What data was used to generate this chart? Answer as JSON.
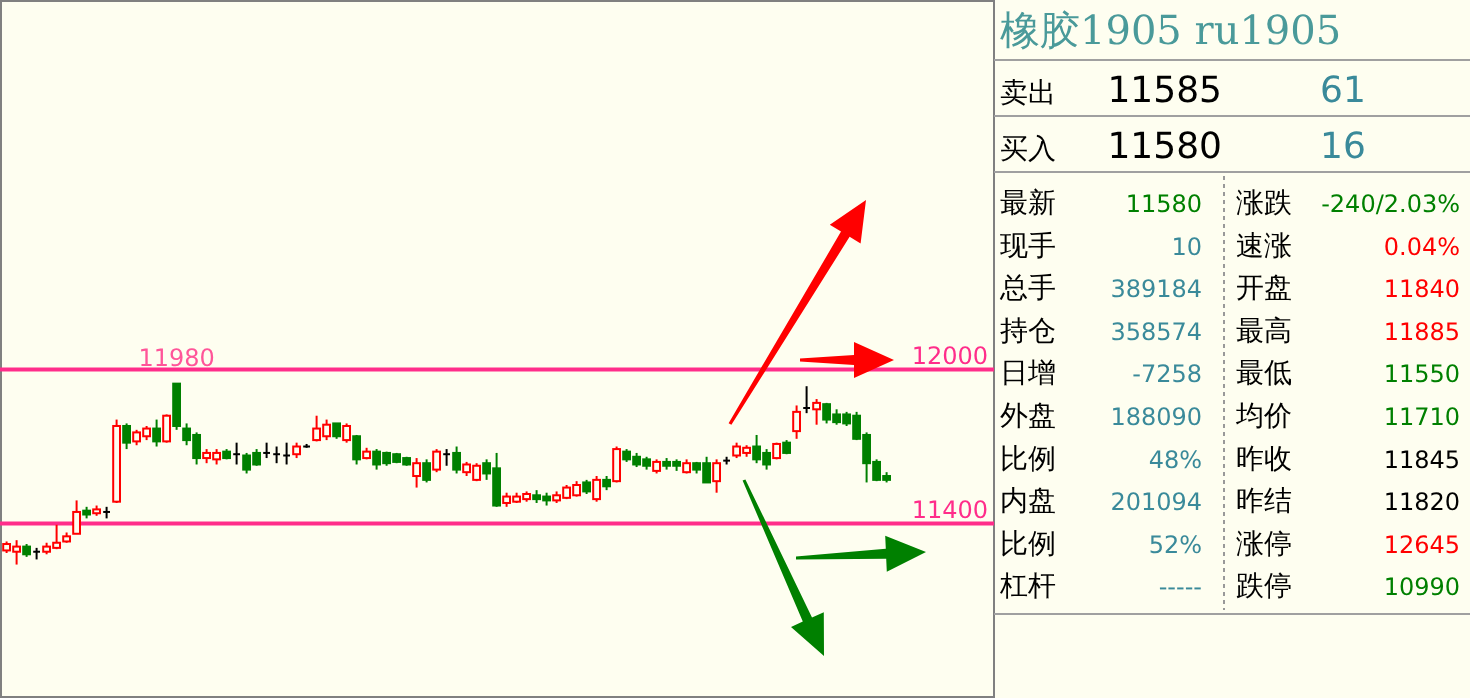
{
  "chart_data": [
    {
      "type": "candlestick",
      "categories": [
        null,
        null,
        null,
        null,
        null,
        null,
        null,
        null,
        null,
        null,
        null,
        null,
        null,
        null,
        null,
        null,
        null,
        null,
        null,
        null,
        null,
        null,
        null,
        null,
        null,
        null,
        null,
        null,
        null,
        null,
        null,
        null,
        null,
        null,
        null,
        null,
        null,
        null,
        null,
        null,
        null,
        null,
        null,
        null,
        null,
        null,
        null,
        null,
        null,
        null,
        null,
        null,
        null,
        null,
        null,
        null,
        null,
        null,
        null,
        null,
        null,
        null,
        null,
        null,
        null,
        null,
        null,
        null,
        null,
        null,
        null,
        null,
        null,
        null,
        null,
        null,
        null,
        null,
        null,
        null,
        null,
        null,
        null,
        null,
        null,
        null,
        null,
        null,
        null
      ],
      "ohlc": [
        [
          11295,
          11330,
          11285,
          11320
        ],
        [
          11290,
          11335,
          11240,
          11310
        ],
        [
          11310,
          11320,
          11270,
          11280
        ],
        [
          11290,
          11305,
          11260,
          11290
        ],
        [
          11290,
          11325,
          11280,
          11310
        ],
        [
          11305,
          11395,
          11300,
          11325
        ],
        [
          11330,
          11365,
          11325,
          11350
        ],
        [
          11360,
          11490,
          11360,
          11445
        ],
        [
          11450,
          11465,
          11420,
          11435
        ],
        [
          11440,
          11470,
          11430,
          11455
        ],
        [
          11445,
          11465,
          11420,
          11445
        ],
        [
          11485,
          11805,
          11480,
          11780
        ],
        [
          11780,
          11790,
          11690,
          11715
        ],
        [
          11720,
          11765,
          11705,
          11755
        ],
        [
          11740,
          11780,
          11725,
          11770
        ],
        [
          11770,
          11805,
          11700,
          11720
        ],
        [
          11720,
          11825,
          11715,
          11820
        ],
        [
          11945,
          11945,
          11765,
          11780
        ],
        [
          11770,
          11790,
          11705,
          11725
        ],
        [
          11745,
          11755,
          11630,
          11655
        ],
        [
          11655,
          11690,
          11635,
          11675
        ],
        [
          11650,
          11690,
          11630,
          11675
        ],
        [
          11680,
          11690,
          11650,
          11655
        ],
        [
          11670,
          11715,
          11630,
          11670
        ],
        [
          11665,
          11675,
          11595,
          11610
        ],
        [
          11675,
          11690,
          11625,
          11630
        ],
        [
          11675,
          11715,
          11655,
          11675
        ],
        [
          11670,
          11700,
          11635,
          11670
        ],
        [
          11665,
          11715,
          11630,
          11665
        ],
        [
          11670,
          11715,
          11655,
          11700
        ],
        [
          11700,
          11710,
          11695,
          11700
        ],
        [
          11725,
          11820,
          11720,
          11770
        ],
        [
          11740,
          11805,
          11725,
          11785
        ],
        [
          11790,
          11790,
          11730,
          11740
        ],
        [
          11725,
          11790,
          11715,
          11780
        ],
        [
          11740,
          11745,
          11630,
          11650
        ],
        [
          11655,
          11695,
          11650,
          11680
        ],
        [
          11680,
          11690,
          11610,
          11630
        ],
        [
          11675,
          11680,
          11625,
          11635
        ],
        [
          11670,
          11675,
          11635,
          11640
        ],
        [
          11655,
          11660,
          11625,
          11630
        ],
        [
          11585,
          11655,
          11540,
          11635
        ],
        [
          11635,
          11650,
          11560,
          11570
        ],
        [
          11610,
          11690,
          11600,
          11680
        ],
        [
          11670,
          11690,
          11625,
          11670
        ],
        [
          11675,
          11700,
          11595,
          11610
        ],
        [
          11600,
          11640,
          11585,
          11630
        ],
        [
          11570,
          11635,
          11565,
          11625
        ],
        [
          11635,
          11650,
          11570,
          11595
        ],
        [
          11615,
          11675,
          11465,
          11470
        ],
        [
          11480,
          11520,
          11465,
          11505
        ],
        [
          11485,
          11520,
          11480,
          11505
        ],
        [
          11495,
          11525,
          11485,
          11515
        ],
        [
          11510,
          11530,
          11480,
          11495
        ],
        [
          11505,
          11520,
          11470,
          11490
        ],
        [
          11490,
          11525,
          11480,
          11510
        ],
        [
          11500,
          11550,
          11495,
          11540
        ],
        [
          11510,
          11565,
          11505,
          11550
        ],
        [
          11560,
          11570,
          11515,
          11525
        ],
        [
          11495,
          11585,
          11485,
          11570
        ],
        [
          11570,
          11585,
          11530,
          11545
        ],
        [
          11565,
          11700,
          11560,
          11690
        ],
        [
          11680,
          11690,
          11640,
          11650
        ],
        [
          11660,
          11675,
          11620,
          11630
        ],
        [
          11650,
          11660,
          11610,
          11625
        ],
        [
          11605,
          11650,
          11595,
          11640
        ],
        [
          11640,
          11655,
          11610,
          11625
        ],
        [
          11640,
          11650,
          11605,
          11625
        ],
        [
          11600,
          11650,
          11595,
          11635
        ],
        [
          11635,
          11640,
          11595,
          11610
        ],
        [
          11635,
          11660,
          11560,
          11560
        ],
        [
          11565,
          11650,
          11520,
          11635
        ],
        [
          11645,
          11660,
          11630,
          11645
        ],
        [
          11665,
          11715,
          11655,
          11700
        ],
        [
          11675,
          11705,
          11660,
          11695
        ],
        [
          11700,
          11745,
          11635,
          11650
        ],
        [
          11675,
          11690,
          11610,
          11630
        ],
        [
          11655,
          11715,
          11650,
          11710
        ],
        [
          11715,
          11725,
          11670,
          11675
        ],
        [
          11760,
          11860,
          11730,
          11835
        ],
        [
          11850,
          11935,
          11830,
          11850
        ],
        [
          11845,
          11885,
          11785,
          11870
        ],
        [
          11865,
          11870,
          11790,
          11805
        ],
        [
          11825,
          11845,
          11785,
          11795
        ],
        [
          11825,
          11835,
          11780,
          11790
        ],
        [
          11820,
          11835,
          11725,
          11730
        ],
        [
          11745,
          11755,
          11560,
          11635
        ],
        [
          11640,
          11650,
          11565,
          11570
        ],
        [
          11585,
          11600,
          11560,
          11570
        ]
      ],
      "colors": [
        "#ff0000",
        "#ff0000",
        "#008000",
        "#000000",
        "#ff0000",
        "#ff0000",
        "#ff0000",
        "#ff0000",
        "#008000",
        "#ff0000",
        "#000000",
        "#ff0000",
        "#008000",
        "#ff0000",
        "#ff0000",
        "#008000",
        "#ff0000",
        "#008000",
        "#008000",
        "#008000",
        "#ff0000",
        "#ff0000",
        "#008000",
        "#000000",
        "#008000",
        "#008000",
        "#000000",
        "#000000",
        "#000000",
        "#ff0000",
        "#000000",
        "#ff0000",
        "#ff0000",
        "#008000",
        "#ff0000",
        "#008000",
        "#ff0000",
        "#008000",
        "#008000",
        "#008000",
        "#008000",
        "#ff0000",
        "#008000",
        "#ff0000",
        "#000000",
        "#008000",
        "#ff0000",
        "#ff0000",
        "#008000",
        "#008000",
        "#ff0000",
        "#ff0000",
        "#ff0000",
        "#008000",
        "#008000",
        "#ff0000",
        "#ff0000",
        "#ff0000",
        "#008000",
        "#ff0000",
        "#008000",
        "#ff0000",
        "#008000",
        "#008000",
        "#008000",
        "#ff0000",
        "#008000",
        "#008000",
        "#ff0000",
        "#008000",
        "#008000",
        "#ff0000",
        "#000000",
        "#ff0000",
        "#ff0000",
        "#008000",
        "#008000",
        "#ff0000",
        "#008000",
        "#ff0000",
        "#000000",
        "#ff0000",
        "#008000",
        "#008000",
        "#008000",
        "#008000",
        "#008000",
        "#008000",
        "#008000"
      ],
      "ylim": [
        10720,
        13440
      ],
      "ref_lines": [
        {
          "axis": "y",
          "value": 12000,
          "label": "12000",
          "color": "#ff2d8a"
        },
        {
          "axis": "y",
          "value": 11400,
          "label": "11400",
          "color": "#ff2d8a"
        }
      ],
      "annotations": [
        {
          "text": "11980",
          "y": 12000
        }
      ]
    },
    {
      "type": "other",
      "title": "橡胶1905 ru1905",
      "annotations": [
        "卖出",
        "11585",
        "61",
        "买入",
        "11580",
        "16",
        "最新",
        "11580",
        "涨跌",
        "-240/2.03%",
        "现手",
        "10",
        "速涨",
        "0.04%",
        "总手",
        "389184",
        "开盘",
        "11840",
        "持仓",
        "358574",
        "最高",
        "11885",
        "日增",
        "-7258",
        "最低",
        "11550",
        "外盘",
        "188090",
        "均价",
        "11710",
        "比例",
        "48%",
        "昨收",
        "11845",
        "内盘",
        "201094",
        "昨结",
        "11820",
        "比例",
        "52%",
        "涨停",
        "12645",
        "杠杆",
        "-----",
        "跌停",
        "10990"
      ],
      "colors": [
        "#000000",
        "#000000",
        "#3a8a9a",
        "#000000",
        "#000000",
        "#3a8a9a",
        "#000000",
        "#008000",
        "#000000",
        "#008000",
        "#000000",
        "#3a8a9a",
        "#000000",
        "#ff0000",
        "#000000",
        "#3a8a9a",
        "#000000",
        "#ff0000",
        "#000000",
        "#3a8a9a",
        "#000000",
        "#ff0000",
        "#000000",
        "#3a8a9a",
        "#000000",
        "#008000",
        "#000000",
        "#3a8a9a",
        "#000000",
        "#008000",
        "#000000",
        "#3a8a9a",
        "#000000",
        "#000000",
        "#000000",
        "#3a8a9a",
        "#000000",
        "#000000",
        "#000000",
        "#3a8a9a",
        "#000000",
        "#ff0000",
        "#000000",
        "#3a8a9a",
        "#000000",
        "#008000"
      ]
    }
  ]
}
